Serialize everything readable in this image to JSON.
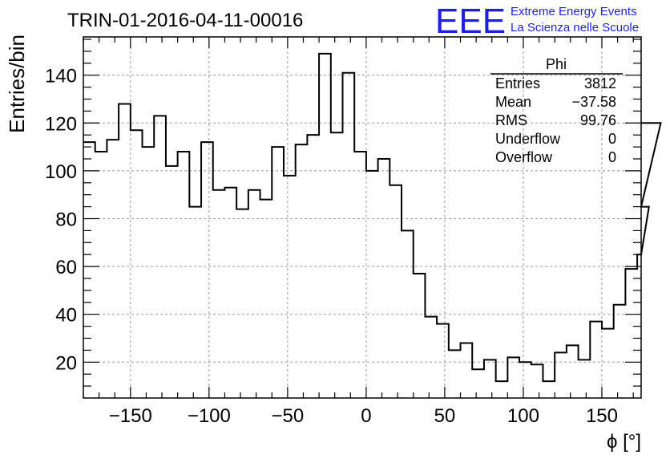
{
  "title": "TRIN-01-2016-04-11-00016",
  "logo": {
    "mark": "EEE",
    "line1": "Extreme Energy Events",
    "line2": "La Scienza nelle Scuole",
    "color": "#1f1fe0"
  },
  "stats": {
    "name": "Phi",
    "rows": [
      {
        "label": "Entries",
        "value": "3812"
      },
      {
        "label": "Mean",
        "value": "−37.58"
      },
      {
        "label": "RMS",
        "value": "99.76"
      },
      {
        "label": "Underflow",
        "value": "0"
      },
      {
        "label": "Overflow",
        "value": "0"
      }
    ]
  },
  "chart_data": {
    "type": "histogram",
    "xlabel": "ϕ [°]",
    "ylabel": "Entries/bin",
    "xlim": [
      -180,
      175
    ],
    "ylim": [
      5,
      156
    ],
    "x_ticks": [
      -150,
      -100,
      -50,
      0,
      50,
      100,
      150
    ],
    "x_tick_labels": [
      "−150",
      "−100",
      "−50",
      "0",
      "50",
      "100",
      "150"
    ],
    "y_ticks": [
      20,
      40,
      60,
      80,
      100,
      120,
      140
    ],
    "y_tick_labels": [
      "20",
      "40",
      "60",
      "80",
      "100",
      "120",
      "140"
    ],
    "grid": true,
    "bin_width": 7.5,
    "bin_edges_start": -180,
    "values": [
      112,
      108,
      113,
      128,
      117,
      110,
      123,
      102,
      108,
      85,
      112,
      92,
      93,
      84,
      92,
      88,
      110,
      98,
      111,
      115,
      149,
      116,
      141,
      108,
      100,
      105,
      94,
      75,
      57,
      39,
      36,
      25,
      28,
      17,
      21,
      12,
      22,
      20,
      19,
      12,
      24,
      27,
      21,
      37,
      34,
      44,
      59,
      65,
      85,
      120
    ]
  }
}
